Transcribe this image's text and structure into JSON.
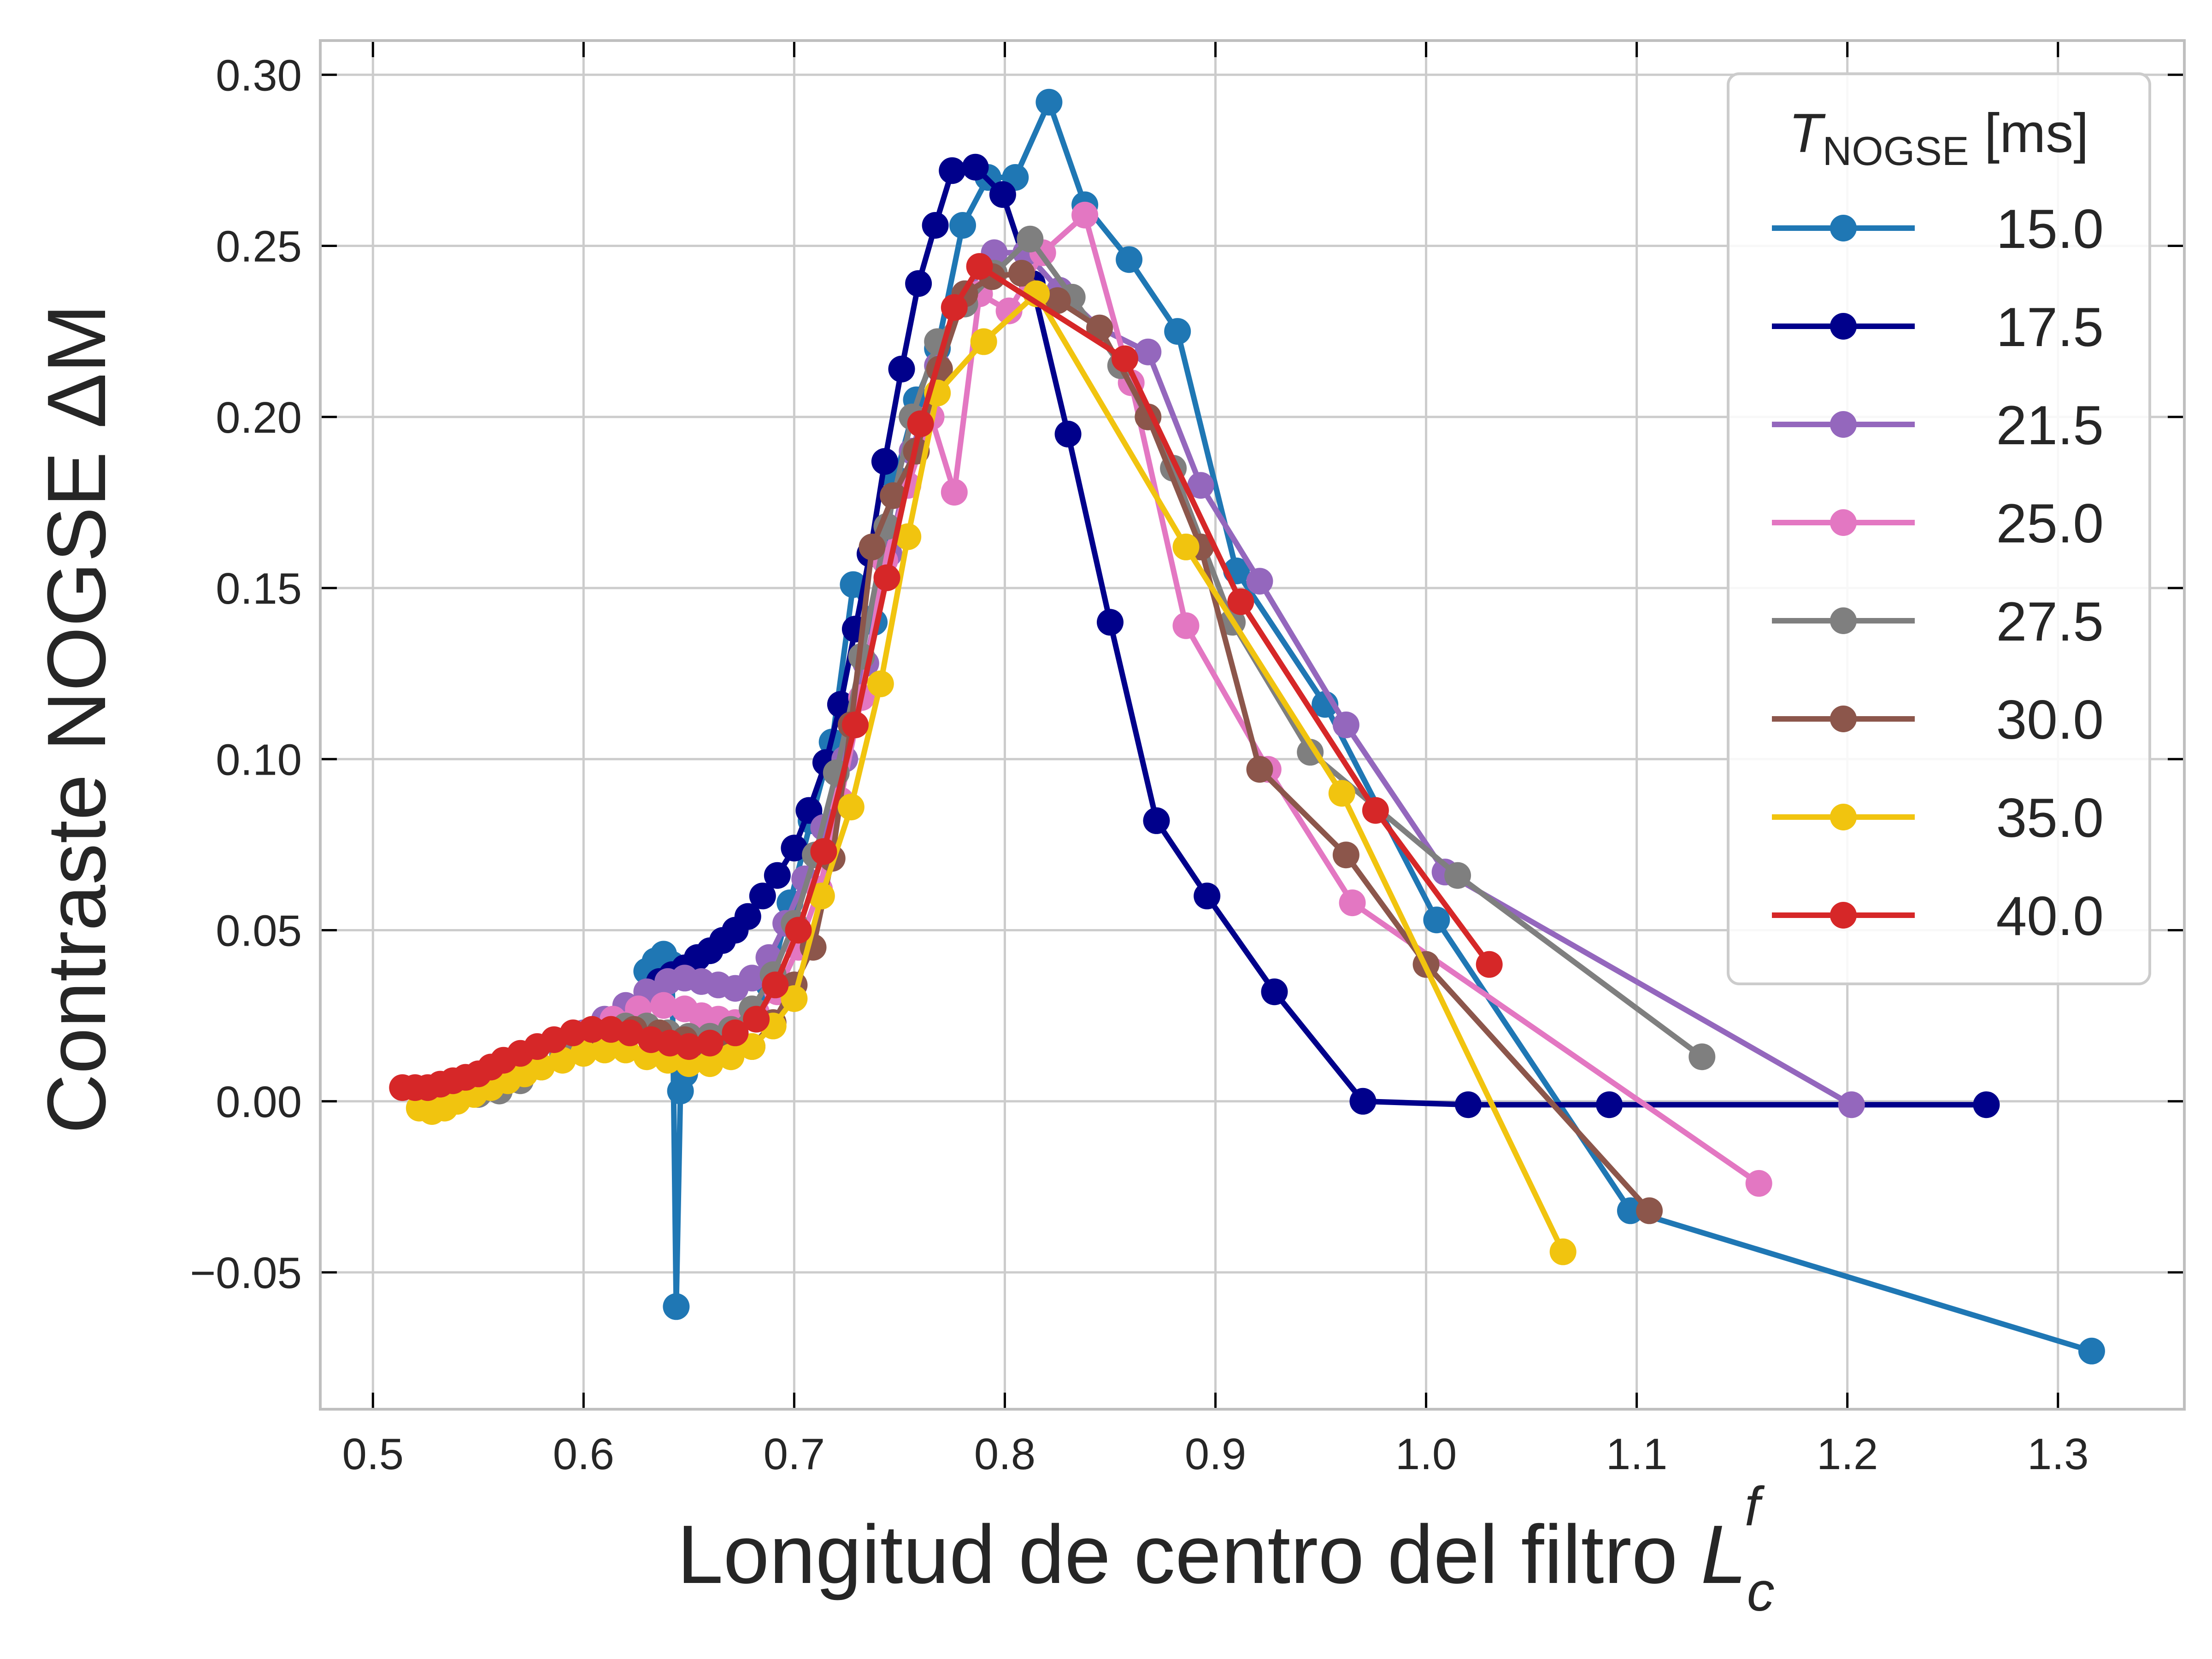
{
  "chart_data": {
    "type": "line",
    "title": "",
    "xlabel": "Longitud de centro del filtro",
    "xlabel_symbol": {
      "base": "L",
      "sub": "c",
      "sup": "f"
    },
    "ylabel": "Contraste NOGSE ΔM",
    "xlim": [
      0.475,
      1.36
    ],
    "ylim": [
      -0.09,
      0.31
    ],
    "xticks": [
      0.5,
      0.6,
      0.7,
      0.8,
      0.9,
      1.0,
      1.1,
      1.2,
      1.3
    ],
    "xtick_labels": [
      "0.5",
      "0.6",
      "0.7",
      "0.8",
      "0.9",
      "1.0",
      "1.1",
      "1.2",
      "1.3"
    ],
    "yticks": [
      -0.05,
      0.0,
      0.05,
      0.1,
      0.15,
      0.2,
      0.25,
      0.3
    ],
    "ytick_labels": [
      "−0.05",
      "0.00",
      "0.05",
      "0.10",
      "0.15",
      "0.20",
      "0.25",
      "0.30"
    ],
    "grid": true,
    "legend": {
      "placement": "top-right",
      "title_base": "T",
      "title_sub": "NOGSE",
      "title_unit": "[ms]"
    },
    "series": [
      {
        "name": "15.0",
        "color": "#1f77b4",
        "x": [
          0.63,
          0.634,
          0.638,
          0.642,
          0.644,
          0.646,
          0.648,
          0.65,
          0.654,
          0.66,
          0.666,
          0.672,
          0.68,
          0.688,
          0.698,
          0.708,
          0.718,
          0.728,
          0.738,
          0.748,
          0.758,
          0.768,
          0.78,
          0.792,
          0.805,
          0.821,
          0.838,
          0.859,
          0.882,
          0.91,
          0.952,
          1.005,
          1.097,
          1.316
        ],
        "y": [
          0.038,
          0.041,
          0.043,
          0.04,
          -0.06,
          0.003,
          0.008,
          0.012,
          0.015,
          0.016,
          0.018,
          0.02,
          0.025,
          0.034,
          0.058,
          0.082,
          0.105,
          0.151,
          0.14,
          0.182,
          0.205,
          0.22,
          0.256,
          0.27,
          0.27,
          0.292,
          0.262,
          0.246,
          0.225,
          0.155,
          0.116,
          0.053,
          -0.032,
          -0.073
        ]
      },
      {
        "name": "17.5",
        "color": "#00008b",
        "x": [
          0.636,
          0.642,
          0.648,
          0.654,
          0.66,
          0.666,
          0.672,
          0.678,
          0.685,
          0.692,
          0.7,
          0.707,
          0.715,
          0.722,
          0.729,
          0.736,
          0.743,
          0.751,
          0.759,
          0.767,
          0.775,
          0.786,
          0.799,
          0.813,
          0.83,
          0.85,
          0.872,
          0.896,
          0.928,
          0.97,
          1.02,
          1.087,
          1.266
        ],
        "y": [
          0.035,
          0.037,
          0.039,
          0.042,
          0.044,
          0.047,
          0.05,
          0.054,
          0.06,
          0.066,
          0.074,
          0.085,
          0.099,
          0.116,
          0.138,
          0.16,
          0.187,
          0.214,
          0.239,
          0.256,
          0.272,
          0.273,
          0.265,
          0.239,
          0.195,
          0.14,
          0.082,
          0.06,
          0.032,
          0.0,
          -0.001,
          -0.001,
          -0.001
        ]
      },
      {
        "name": "21.5",
        "color": "#9467bd",
        "x": [
          0.6,
          0.61,
          0.62,
          0.63,
          0.64,
          0.648,
          0.656,
          0.664,
          0.672,
          0.68,
          0.688,
          0.696,
          0.705,
          0.714,
          0.724,
          0.734,
          0.745,
          0.756,
          0.768,
          0.781,
          0.795,
          0.81,
          0.826,
          0.845,
          0.868,
          0.893,
          0.921,
          0.962,
          1.009,
          1.202
        ],
        "y": [
          0.02,
          0.024,
          0.028,
          0.032,
          0.035,
          0.036,
          0.035,
          0.034,
          0.033,
          0.036,
          0.042,
          0.052,
          0.065,
          0.08,
          0.1,
          0.128,
          0.16,
          0.19,
          0.215,
          0.236,
          0.248,
          0.248,
          0.237,
          0.226,
          0.219,
          0.18,
          0.152,
          0.11,
          0.067,
          -0.001
        ]
      },
      {
        "name": "25.0",
        "color": "#e377c2",
        "x": [
          0.59,
          0.602,
          0.614,
          0.626,
          0.638,
          0.648,
          0.656,
          0.664,
          0.672,
          0.682,
          0.692,
          0.702,
          0.712,
          0.722,
          0.732,
          0.743,
          0.754,
          0.765,
          0.776,
          0.788,
          0.802,
          0.818,
          0.838,
          0.86,
          0.886,
          0.925,
          0.965,
          1.158
        ],
        "y": [
          0.016,
          0.02,
          0.024,
          0.027,
          0.028,
          0.027,
          0.025,
          0.024,
          0.023,
          0.026,
          0.032,
          0.045,
          0.062,
          0.088,
          0.118,
          0.158,
          0.18,
          0.2,
          0.178,
          0.236,
          0.231,
          0.248,
          0.259,
          0.21,
          0.139,
          0.097,
          0.058,
          -0.024
        ]
      },
      {
        "name": "27.5",
        "color": "#7f7f7f",
        "x": [
          0.54,
          0.55,
          0.56,
          0.57,
          0.58,
          0.59,
          0.6,
          0.61,
          0.62,
          0.63,
          0.64,
          0.65,
          0.66,
          0.67,
          0.68,
          0.69,
          0.7,
          0.71,
          0.72,
          0.732,
          0.744,
          0.756,
          0.768,
          0.781,
          0.795,
          0.812,
          0.832,
          0.855,
          0.88,
          0.908,
          0.945,
          1.015,
          1.131
        ],
        "y": [
          0.001,
          0.002,
          0.003,
          0.006,
          0.01,
          0.014,
          0.018,
          0.02,
          0.022,
          0.022,
          0.02,
          0.019,
          0.019,
          0.021,
          0.027,
          0.037,
          0.052,
          0.072,
          0.096,
          0.13,
          0.168,
          0.2,
          0.222,
          0.233,
          0.242,
          0.252,
          0.235,
          0.215,
          0.185,
          0.14,
          0.102,
          0.066,
          0.013
        ]
      },
      {
        "name": "30.0",
        "color": "#8c564b",
        "x": [
          0.6,
          0.612,
          0.624,
          0.636,
          0.648,
          0.66,
          0.67,
          0.68,
          0.69,
          0.7,
          0.709,
          0.718,
          0.727,
          0.737,
          0.747,
          0.758,
          0.769,
          0.781,
          0.794,
          0.808,
          0.825,
          0.845,
          0.868,
          0.893,
          0.921,
          0.962,
          1.0,
          1.106
        ],
        "y": [
          0.018,
          0.02,
          0.021,
          0.02,
          0.018,
          0.016,
          0.015,
          0.016,
          0.023,
          0.034,
          0.045,
          0.071,
          0.11,
          0.162,
          0.177,
          0.19,
          0.214,
          0.236,
          0.241,
          0.242,
          0.234,
          0.226,
          0.2,
          0.162,
          0.097,
          0.072,
          0.04,
          -0.032
        ]
      },
      {
        "name": "35.0",
        "color": "#f1c40f",
        "x": [
          0.522,
          0.528,
          0.534,
          0.54,
          0.548,
          0.556,
          0.564,
          0.572,
          0.58,
          0.59,
          0.6,
          0.61,
          0.62,
          0.63,
          0.64,
          0.65,
          0.66,
          0.67,
          0.68,
          0.69,
          0.7,
          0.713,
          0.727,
          0.741,
          0.754,
          0.768,
          0.79,
          0.815,
          0.886,
          0.96,
          1.065
        ],
        "y": [
          -0.002,
          -0.003,
          -0.002,
          0.0,
          0.002,
          0.004,
          0.006,
          0.008,
          0.01,
          0.012,
          0.014,
          0.015,
          0.015,
          0.013,
          0.012,
          0.011,
          0.011,
          0.013,
          0.016,
          0.022,
          0.03,
          0.06,
          0.086,
          0.122,
          0.165,
          0.207,
          0.222,
          0.236,
          0.162,
          0.09,
          -0.044
        ]
      },
      {
        "name": "40.0",
        "color": "#d62728",
        "x": [
          0.514,
          0.52,
          0.526,
          0.532,
          0.538,
          0.544,
          0.55,
          0.556,
          0.562,
          0.57,
          0.578,
          0.586,
          0.595,
          0.604,
          0.613,
          0.622,
          0.632,
          0.641,
          0.65,
          0.66,
          0.672,
          0.682,
          0.691,
          0.702,
          0.714,
          0.729,
          0.744,
          0.76,
          0.776,
          0.788,
          0.857,
          0.912,
          0.976,
          1.03
        ],
        "y": [
          0.004,
          0.004,
          0.004,
          0.005,
          0.006,
          0.007,
          0.008,
          0.01,
          0.012,
          0.014,
          0.016,
          0.018,
          0.02,
          0.021,
          0.021,
          0.02,
          0.018,
          0.017,
          0.016,
          0.017,
          0.02,
          0.024,
          0.034,
          0.05,
          0.073,
          0.11,
          0.153,
          0.198,
          0.232,
          0.244,
          0.217,
          0.146,
          0.085,
          0.04
        ]
      }
    ]
  }
}
